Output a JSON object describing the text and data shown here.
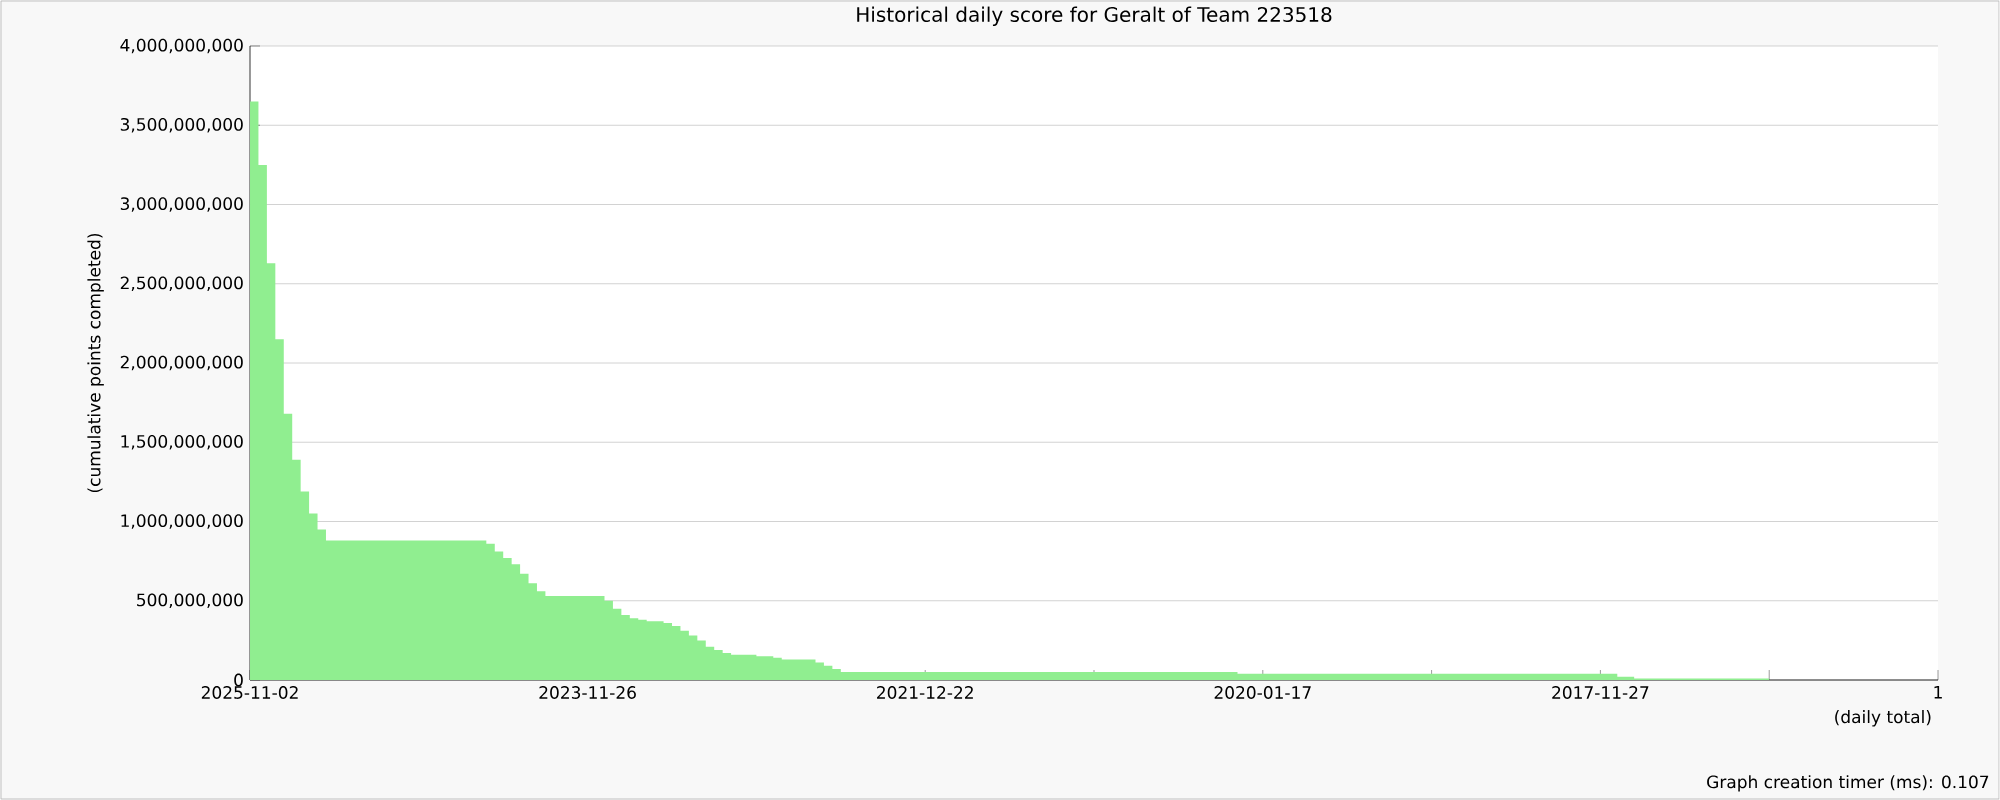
{
  "chart_data": {
    "type": "area",
    "title": "Historical daily score for Geralt of Team 223518",
    "xlabel": "(daily total)",
    "ylabel": "(cumulative points completed)",
    "annotations": [
      "Graph creation timer (ms): 0.107"
    ],
    "categories": [
      "2025-11-02",
      null,
      null,
      null,
      null,
      null,
      null,
      null,
      null,
      null,
      null,
      null,
      null,
      null,
      null,
      null,
      null,
      null,
      null,
      null,
      null,
      null,
      null,
      null,
      null,
      null,
      null,
      null,
      null,
      null,
      null,
      null,
      null,
      null,
      null,
      null,
      null,
      null,
      null,
      null,
      "2023-11-26",
      null,
      null,
      null,
      null,
      null,
      null,
      null,
      null,
      null,
      null,
      null,
      null,
      null,
      null,
      null,
      null,
      null,
      null,
      null,
      null,
      null,
      null,
      null,
      null,
      null,
      null,
      null,
      null,
      null,
      null,
      null,
      null,
      null,
      null,
      null,
      null,
      null,
      null,
      null,
      "2021-12-22",
      null,
      null,
      null,
      null,
      null,
      null,
      null,
      null,
      null,
      null,
      null,
      null,
      null,
      null,
      null,
      null,
      null,
      null,
      null,
      null,
      null,
      null,
      null,
      null,
      null,
      null,
      null,
      null,
      null,
      null,
      null,
      null,
      null,
      null,
      null,
      null,
      null,
      null,
      null,
      "2020-01-17",
      null,
      null,
      null,
      null,
      null,
      null,
      null,
      null,
      null,
      null,
      null,
      null,
      null,
      null,
      null,
      null,
      null,
      null,
      null,
      null,
      null,
      null,
      null,
      null,
      null,
      null,
      null,
      null,
      null,
      null,
      null,
      null,
      null,
      null,
      null,
      null,
      null,
      null,
      null,
      "2017-11-27",
      null,
      null,
      null,
      null,
      null,
      null,
      null,
      null,
      null,
      null,
      null,
      null,
      null,
      null,
      null,
      null,
      null,
      null,
      null,
      null,
      null,
      null,
      null,
      null,
      null,
      null,
      null,
      null,
      null,
      null,
      null,
      null,
      null,
      null,
      null,
      null,
      null,
      null,
      null,
      "1"
    ],
    "values": [
      3650000000,
      3250000000,
      2630000000,
      2150000000,
      1680000000,
      1390000000,
      1190000000,
      1050000000,
      950000000,
      880000000,
      880000000,
      880000000,
      880000000,
      880000000,
      880000000,
      880000000,
      880000000,
      880000000,
      880000000,
      880000000,
      880000000,
      880000000,
      880000000,
      880000000,
      880000000,
      880000000,
      880000000,
      880000000,
      860000000,
      810000000,
      770000000,
      730000000,
      670000000,
      610000000,
      560000000,
      530000000,
      530000000,
      530000000,
      530000000,
      530000000,
      530000000,
      530000000,
      500000000,
      450000000,
      410000000,
      390000000,
      380000000,
      370000000,
      370000000,
      360000000,
      340000000,
      310000000,
      280000000,
      250000000,
      210000000,
      190000000,
      170000000,
      160000000,
      160000000,
      160000000,
      150000000,
      150000000,
      140000000,
      130000000,
      130000000,
      130000000,
      130000000,
      110000000,
      90000000,
      70000000,
      50000000,
      50000000,
      50000000,
      50000000,
      50000000,
      50000000,
      50000000,
      50000000,
      50000000,
      50000000,
      50000000,
      50000000,
      50000000,
      50000000,
      50000000,
      50000000,
      50000000,
      50000000,
      50000000,
      50000000,
      50000000,
      50000000,
      50000000,
      50000000,
      50000000,
      50000000,
      50000000,
      50000000,
      50000000,
      50000000,
      50000000,
      50000000,
      50000000,
      50000000,
      50000000,
      50000000,
      50000000,
      50000000,
      50000000,
      50000000,
      50000000,
      50000000,
      50000000,
      50000000,
      50000000,
      50000000,
      50000000,
      40000000,
      40000000,
      40000000,
      40000000,
      40000000,
      40000000,
      40000000,
      40000000,
      40000000,
      40000000,
      40000000,
      40000000,
      40000000,
      40000000,
      40000000,
      40000000,
      40000000,
      40000000,
      40000000,
      40000000,
      40000000,
      40000000,
      40000000,
      40000000,
      40000000,
      40000000,
      40000000,
      40000000,
      40000000,
      40000000,
      40000000,
      40000000,
      40000000,
      40000000,
      40000000,
      40000000,
      40000000,
      40000000,
      40000000,
      40000000,
      40000000,
      40000000,
      40000000,
      40000000,
      40000000,
      20000000,
      20000000,
      10000000,
      10000000,
      10000000,
      10000000,
      10000000,
      10000000,
      10000000,
      10000000,
      10000000,
      10000000,
      10000000,
      10000000,
      10000000,
      10000000,
      10000000,
      10000000,
      0,
      0,
      0,
      0,
      0,
      0,
      0,
      0,
      0,
      0,
      0,
      0,
      0,
      0,
      0,
      0,
      0,
      0,
      0,
      0,
      0
    ],
    "color": "#90ee90",
    "ylim": [
      0,
      4000000000
    ],
    "yticks": [
      {
        "value": 0,
        "label": "0"
      },
      {
        "value": 500000000,
        "label": "500,000,000"
      },
      {
        "value": 1000000000,
        "label": "1,000,000,000"
      },
      {
        "value": 1500000000,
        "label": "1,500,000,000"
      },
      {
        "value": 2000000000,
        "label": "2,000,000,000"
      },
      {
        "value": 2500000000,
        "label": "2,500,000,000"
      },
      {
        "value": 3000000000,
        "label": "3,000,000,000"
      },
      {
        "value": 3500000000,
        "label": "3,500,000,000"
      },
      {
        "value": 4000000000,
        "label": "4,000,000,000"
      }
    ],
    "grid": "y"
  }
}
